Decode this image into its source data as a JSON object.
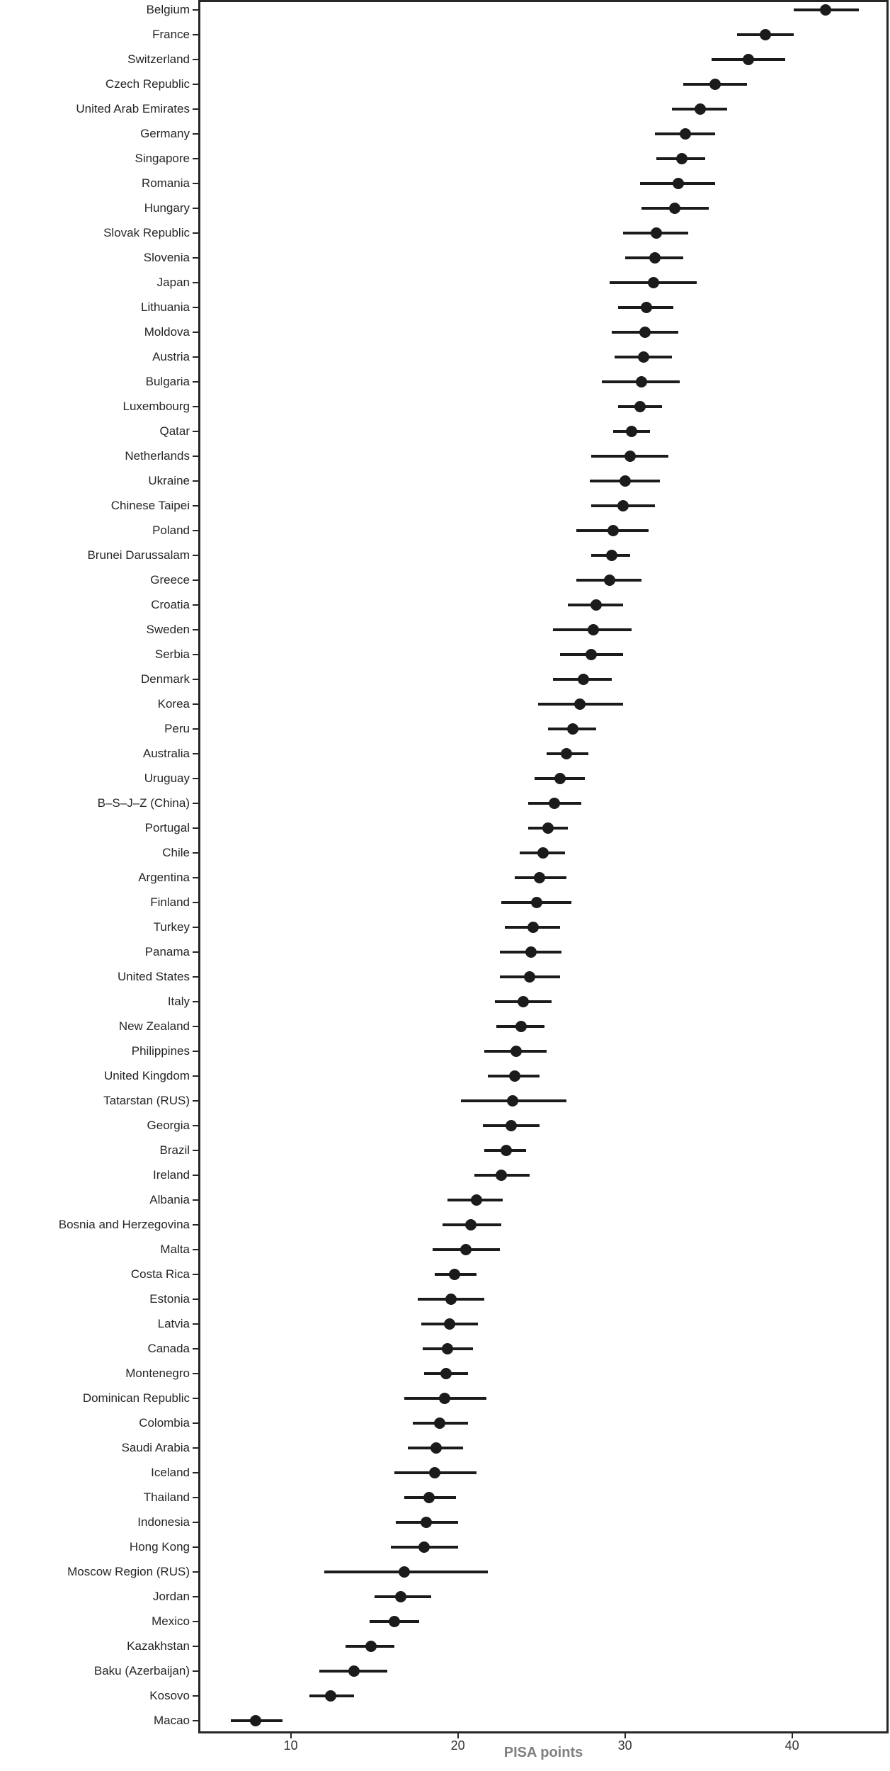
{
  "axis": {
    "x_title": "PISA points"
  },
  "colors": {
    "point": "#1b1b1b",
    "grid": "#e9e9e9",
    "panel_border": "#262626",
    "y_label": "#262626",
    "x_tick_label": "#333333",
    "x_title": "#7f7f7f",
    "background": "#ffffff"
  },
  "chart_data": {
    "type": "scatter",
    "subtype": "dot-plot-with-error-bars",
    "title": "",
    "xlabel": "PISA points",
    "ylabel": "",
    "x_ticks": [
      10,
      20,
      30,
      40
    ],
    "xlim": [
      4.5,
      45.8
    ],
    "grid": "major-only",
    "legend": "none",
    "points": [
      {
        "country": "Belgium",
        "value": 42.0,
        "ci_low": 40.1,
        "ci_high": 44.0
      },
      {
        "country": "France",
        "value": 38.4,
        "ci_low": 36.7,
        "ci_high": 40.1
      },
      {
        "country": "Switzerland",
        "value": 37.4,
        "ci_low": 35.2,
        "ci_high": 39.6
      },
      {
        "country": "Czech Republic",
        "value": 35.4,
        "ci_low": 33.5,
        "ci_high": 37.3
      },
      {
        "country": "United Arab Emirates",
        "value": 34.5,
        "ci_low": 32.8,
        "ci_high": 36.1
      },
      {
        "country": "Germany",
        "value": 33.6,
        "ci_low": 31.8,
        "ci_high": 35.4
      },
      {
        "country": "Singapore",
        "value": 33.4,
        "ci_low": 31.9,
        "ci_high": 34.8
      },
      {
        "country": "Romania",
        "value": 33.2,
        "ci_low": 30.9,
        "ci_high": 35.4
      },
      {
        "country": "Hungary",
        "value": 33.0,
        "ci_low": 31.0,
        "ci_high": 35.0
      },
      {
        "country": "Slovak Republic",
        "value": 31.9,
        "ci_low": 29.9,
        "ci_high": 33.8
      },
      {
        "country": "Slovenia",
        "value": 31.8,
        "ci_low": 30.0,
        "ci_high": 33.5
      },
      {
        "country": "Japan",
        "value": 31.7,
        "ci_low": 29.1,
        "ci_high": 34.3
      },
      {
        "country": "Lithuania",
        "value": 31.3,
        "ci_low": 29.6,
        "ci_high": 32.9
      },
      {
        "country": "Moldova",
        "value": 31.2,
        "ci_low": 29.2,
        "ci_high": 33.2
      },
      {
        "country": "Austria",
        "value": 31.1,
        "ci_low": 29.4,
        "ci_high": 32.8
      },
      {
        "country": "Bulgaria",
        "value": 31.0,
        "ci_low": 28.6,
        "ci_high": 33.3
      },
      {
        "country": "Luxembourg",
        "value": 30.9,
        "ci_low": 29.6,
        "ci_high": 32.2
      },
      {
        "country": "Qatar",
        "value": 30.4,
        "ci_low": 29.3,
        "ci_high": 31.5
      },
      {
        "country": "Netherlands",
        "value": 30.3,
        "ci_low": 28.0,
        "ci_high": 32.6
      },
      {
        "country": "Ukraine",
        "value": 30.0,
        "ci_low": 27.9,
        "ci_high": 32.1
      },
      {
        "country": "Chinese Taipei",
        "value": 29.9,
        "ci_low": 28.0,
        "ci_high": 31.8
      },
      {
        "country": "Poland",
        "value": 29.3,
        "ci_low": 27.1,
        "ci_high": 31.4
      },
      {
        "country": "Brunei Darussalam",
        "value": 29.2,
        "ci_low": 28.0,
        "ci_high": 30.3
      },
      {
        "country": "Greece",
        "value": 29.1,
        "ci_low": 27.1,
        "ci_high": 31.0
      },
      {
        "country": "Croatia",
        "value": 28.3,
        "ci_low": 26.6,
        "ci_high": 29.9
      },
      {
        "country": "Sweden",
        "value": 28.1,
        "ci_low": 25.7,
        "ci_high": 30.4
      },
      {
        "country": "Serbia",
        "value": 28.0,
        "ci_low": 26.1,
        "ci_high": 29.9
      },
      {
        "country": "Denmark",
        "value": 27.5,
        "ci_low": 25.7,
        "ci_high": 29.2
      },
      {
        "country": "Korea",
        "value": 27.3,
        "ci_low": 24.8,
        "ci_high": 29.9
      },
      {
        "country": "Peru",
        "value": 26.9,
        "ci_low": 25.4,
        "ci_high": 28.3
      },
      {
        "country": "Australia",
        "value": 26.5,
        "ci_low": 25.3,
        "ci_high": 27.8
      },
      {
        "country": "Uruguay",
        "value": 26.1,
        "ci_low": 24.6,
        "ci_high": 27.6
      },
      {
        "country": "B–S–J–Z (China)",
        "value": 25.8,
        "ci_low": 24.2,
        "ci_high": 27.4
      },
      {
        "country": "Portugal",
        "value": 25.4,
        "ci_low": 24.2,
        "ci_high": 26.6
      },
      {
        "country": "Chile",
        "value": 25.1,
        "ci_low": 23.7,
        "ci_high": 26.4
      },
      {
        "country": "Argentina",
        "value": 24.9,
        "ci_low": 23.4,
        "ci_high": 26.5
      },
      {
        "country": "Finland",
        "value": 24.7,
        "ci_low": 22.6,
        "ci_high": 26.8
      },
      {
        "country": "Turkey",
        "value": 24.5,
        "ci_low": 22.8,
        "ci_high": 26.1
      },
      {
        "country": "Panama",
        "value": 24.4,
        "ci_low": 22.5,
        "ci_high": 26.2
      },
      {
        "country": "United States",
        "value": 24.3,
        "ci_low": 22.5,
        "ci_high": 26.1
      },
      {
        "country": "Italy",
        "value": 23.9,
        "ci_low": 22.2,
        "ci_high": 25.6
      },
      {
        "country": "New Zealand",
        "value": 23.8,
        "ci_low": 22.3,
        "ci_high": 25.2
      },
      {
        "country": "Philippines",
        "value": 23.5,
        "ci_low": 21.6,
        "ci_high": 25.3
      },
      {
        "country": "United Kingdom",
        "value": 23.4,
        "ci_low": 21.8,
        "ci_high": 24.9
      },
      {
        "country": "Tatarstan (RUS)",
        "value": 23.3,
        "ci_low": 20.2,
        "ci_high": 26.5
      },
      {
        "country": "Georgia",
        "value": 23.2,
        "ci_low": 21.5,
        "ci_high": 24.9
      },
      {
        "country": "Brazil",
        "value": 22.9,
        "ci_low": 21.6,
        "ci_high": 24.1
      },
      {
        "country": "Ireland",
        "value": 22.6,
        "ci_low": 21.0,
        "ci_high": 24.3
      },
      {
        "country": "Albania",
        "value": 21.1,
        "ci_low": 19.4,
        "ci_high": 22.7
      },
      {
        "country": "Bosnia and Herzegovina",
        "value": 20.8,
        "ci_low": 19.1,
        "ci_high": 22.6
      },
      {
        "country": "Malta",
        "value": 20.5,
        "ci_low": 18.5,
        "ci_high": 22.5
      },
      {
        "country": "Costa Rica",
        "value": 19.8,
        "ci_low": 18.6,
        "ci_high": 21.1
      },
      {
        "country": "Estonia",
        "value": 19.6,
        "ci_low": 17.6,
        "ci_high": 21.6
      },
      {
        "country": "Latvia",
        "value": 19.5,
        "ci_low": 17.8,
        "ci_high": 21.2
      },
      {
        "country": "Canada",
        "value": 19.4,
        "ci_low": 17.9,
        "ci_high": 20.9
      },
      {
        "country": "Montenegro",
        "value": 19.3,
        "ci_low": 18.0,
        "ci_high": 20.6
      },
      {
        "country": "Dominican Republic",
        "value": 19.2,
        "ci_low": 16.8,
        "ci_high": 21.7
      },
      {
        "country": "Colombia",
        "value": 18.9,
        "ci_low": 17.3,
        "ci_high": 20.6
      },
      {
        "country": "Saudi Arabia",
        "value": 18.7,
        "ci_low": 17.0,
        "ci_high": 20.3
      },
      {
        "country": "Iceland",
        "value": 18.6,
        "ci_low": 16.2,
        "ci_high": 21.1
      },
      {
        "country": "Thailand",
        "value": 18.3,
        "ci_low": 16.8,
        "ci_high": 19.9
      },
      {
        "country": "Indonesia",
        "value": 18.1,
        "ci_low": 16.3,
        "ci_high": 20.0
      },
      {
        "country": "Hong Kong",
        "value": 18.0,
        "ci_low": 16.0,
        "ci_high": 20.0
      },
      {
        "country": "Moscow Region (RUS)",
        "value": 16.8,
        "ci_low": 12.0,
        "ci_high": 21.8
      },
      {
        "country": "Jordan",
        "value": 16.6,
        "ci_low": 15.0,
        "ci_high": 18.4
      },
      {
        "country": "Mexico",
        "value": 16.2,
        "ci_low": 14.7,
        "ci_high": 17.7
      },
      {
        "country": "Kazakhstan",
        "value": 14.8,
        "ci_low": 13.3,
        "ci_high": 16.2
      },
      {
        "country": "Baku (Azerbaijan)",
        "value": 13.8,
        "ci_low": 11.7,
        "ci_high": 15.8
      },
      {
        "country": "Kosovo",
        "value": 12.4,
        "ci_low": 11.1,
        "ci_high": 13.8
      },
      {
        "country": "Macao",
        "value": 7.9,
        "ci_low": 6.4,
        "ci_high": 9.5
      }
    ]
  }
}
